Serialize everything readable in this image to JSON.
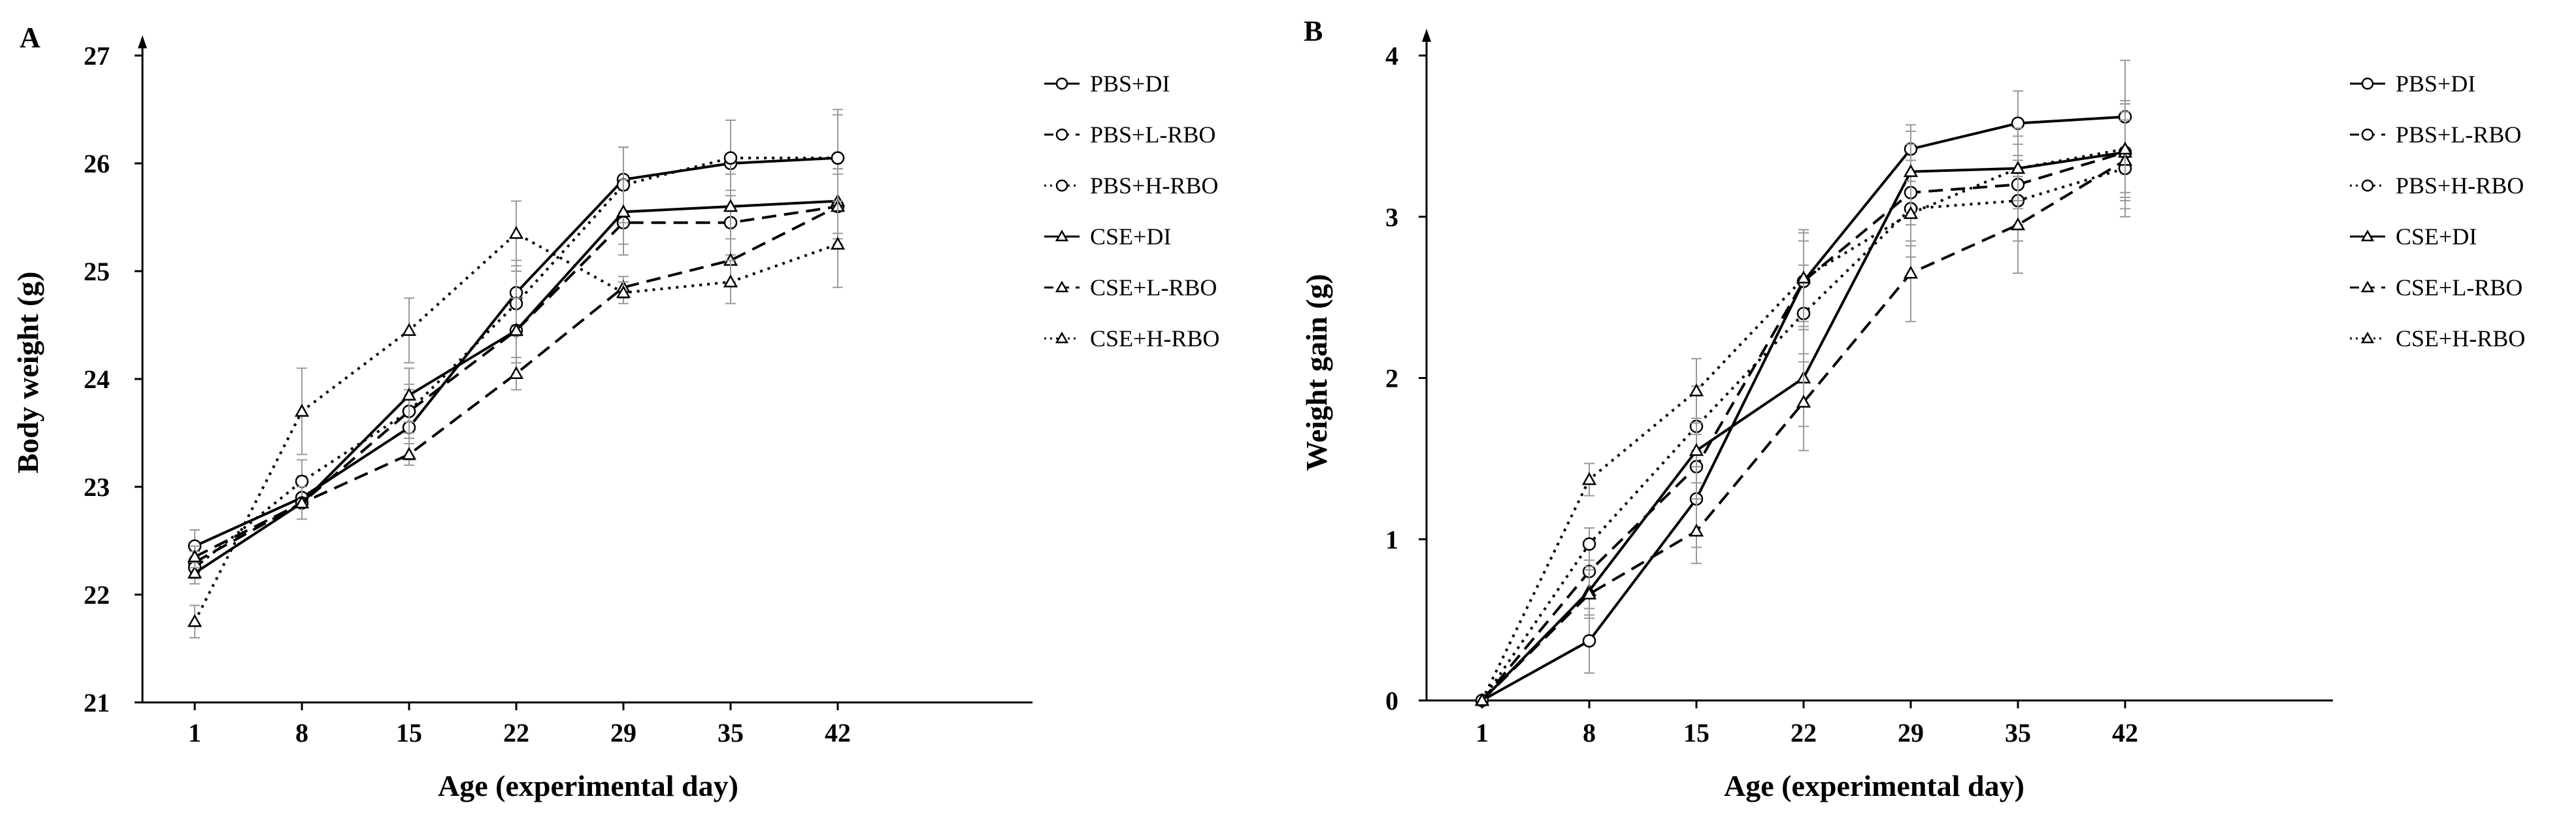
{
  "chart_data": [
    {
      "type": "line",
      "panel": "A",
      "title": "",
      "xlabel": "Age (experimental day)",
      "ylabel": "Body weight (g)",
      "categories": [
        "1",
        "8",
        "15",
        "22",
        "29",
        "35",
        "42"
      ],
      "ylim": [
        21,
        27
      ],
      "yticks": [
        "21",
        "22",
        "23",
        "24",
        "25",
        "26",
        "27"
      ],
      "grid": false,
      "legend_position": "top-right",
      "series": [
        {
          "name": "PBS+DI",
          "marker": "circle",
          "dash": "solid",
          "values": [
            22.45,
            22.9,
            23.55,
            24.8,
            25.85,
            26.0,
            26.05
          ],
          "errors": [
            0.15,
            0.2,
            0.3,
            0.3,
            0.3,
            0.4,
            0.45
          ]
        },
        {
          "name": "PBS+L-RBO",
          "marker": "circle",
          "dash": "dashed",
          "values": [
            22.3,
            22.85,
            23.7,
            24.45,
            25.45,
            25.45,
            25.6
          ],
          "errors": [
            0.1,
            0.15,
            0.2,
            0.25,
            0.3,
            0.3,
            0.35
          ]
        },
        {
          "name": "PBS+H-RBO",
          "marker": "circle",
          "dash": "dotted",
          "values": [
            22.25,
            23.05,
            23.7,
            24.7,
            25.8,
            26.05,
            26.05
          ],
          "errors": [
            0.1,
            0.2,
            0.25,
            0.3,
            0.35,
            0.35,
            0.4
          ]
        },
        {
          "name": "CSE+DI",
          "marker": "triangle",
          "dash": "solid",
          "values": [
            22.2,
            22.85,
            23.85,
            24.45,
            25.55,
            25.6,
            25.65
          ],
          "errors": [
            0.1,
            0.15,
            0.25,
            0.3,
            0.3,
            0.3,
            0.3
          ]
        },
        {
          "name": "CSE+L-RBO",
          "marker": "triangle",
          "dash": "dashed",
          "values": [
            22.35,
            22.85,
            23.3,
            24.05,
            24.85,
            25.1,
            25.6
          ],
          "errors": [
            0.1,
            0.15,
            0.1,
            0.15,
            0.1,
            0.2,
            0.3
          ]
        },
        {
          "name": "CSE+H-RBO",
          "marker": "triangle",
          "dash": "dotted",
          "values": [
            21.75,
            23.7,
            24.45,
            25.35,
            24.8,
            24.9,
            25.25
          ],
          "errors": [
            0.15,
            0.4,
            0.3,
            0.3,
            0.1,
            0.2,
            0.4
          ]
        }
      ]
    },
    {
      "type": "line",
      "panel": "B",
      "title": "",
      "xlabel": "Age (experimental day)",
      "ylabel": "Weight gain (g)",
      "categories": [
        "1",
        "8",
        "15",
        "22",
        "29",
        "35",
        "42"
      ],
      "ylim": [
        0,
        4
      ],
      "yticks": [
        "0",
        "1",
        "2",
        "3",
        "4"
      ],
      "grid": false,
      "legend_position": "top-right",
      "series": [
        {
          "name": "PBS+DI",
          "marker": "circle",
          "dash": "solid",
          "values": [
            0,
            0.37,
            1.25,
            2.6,
            3.42,
            3.58,
            3.62
          ],
          "errors": [
            0,
            0.2,
            0.3,
            0.3,
            0.15,
            0.2,
            0.35
          ]
        },
        {
          "name": "PBS+L-RBO",
          "marker": "circle",
          "dash": "dashed",
          "values": [
            0,
            0.8,
            1.45,
            2.6,
            3.15,
            3.2,
            3.4
          ],
          "errors": [
            0,
            0.15,
            0.2,
            0.25,
            0.3,
            0.25,
            0.3
          ]
        },
        {
          "name": "PBS+H-RBO",
          "marker": "circle",
          "dash": "dotted",
          "values": [
            0,
            0.97,
            1.7,
            2.4,
            3.05,
            3.1,
            3.3
          ],
          "errors": [
            0,
            0.1,
            0.25,
            0.3,
            0.3,
            0.25,
            0.3
          ]
        },
        {
          "name": "CSE+DI",
          "marker": "triangle",
          "dash": "solid",
          "values": [
            0,
            0.68,
            1.55,
            2.0,
            3.28,
            3.3,
            3.4
          ],
          "errors": [
            0,
            0.15,
            0.2,
            0.3,
            0.25,
            0.2,
            0.25
          ]
        },
        {
          "name": "CSE+L-RBO",
          "marker": "triangle",
          "dash": "dashed",
          "values": [
            0,
            0.66,
            1.05,
            1.85,
            2.65,
            2.95,
            3.35
          ],
          "errors": [
            0,
            0.15,
            0.2,
            0.3,
            0.3,
            0.3,
            0.3
          ]
        },
        {
          "name": "CSE+H-RBO",
          "marker": "triangle",
          "dash": "dotted",
          "values": [
            0,
            1.37,
            1.92,
            2.62,
            3.02,
            3.3,
            3.42
          ],
          "errors": [
            0,
            0.1,
            0.2,
            0.3,
            0.2,
            0.25,
            0.3
          ]
        }
      ]
    }
  ]
}
